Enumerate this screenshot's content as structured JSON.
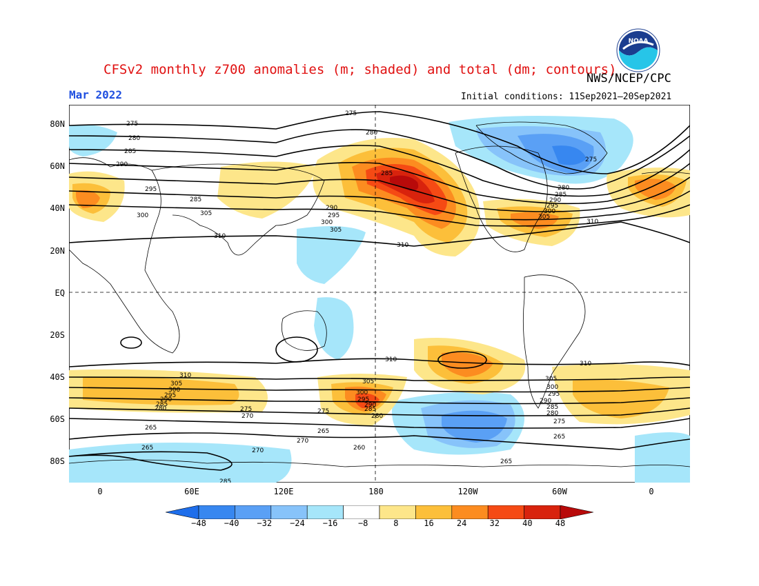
{
  "header": {
    "title": "CFSv2 monthly z700 anomalies (m; shaded) and total (dm; contours)",
    "agency": "NWS/NCEP/CPC",
    "month": "Mar 2022",
    "initial_conditions": "Initial conditions: 11Sep2021–20Sep2021",
    "logo_text": "NOAA"
  },
  "map": {
    "lat_labels": [
      "80N",
      "60N",
      "40N",
      "20N",
      "EQ",
      "20S",
      "40S",
      "60S",
      "80S"
    ],
    "lon_labels": [
      "0",
      "60E",
      "120E",
      "180",
      "120W",
      "60W",
      "0"
    ],
    "grid": "dashed at EQ and 180",
    "contour_labels": [
      "275",
      "280",
      "285",
      "290",
      "295",
      "300",
      "305",
      "310",
      "275",
      "280",
      "285",
      "290",
      "295",
      "300",
      "305",
      "310",
      "285",
      "275",
      "280",
      "285",
      "290",
      "295",
      "300",
      "305",
      "310",
      "310",
      "310",
      "305",
      "300",
      "295",
      "290",
      "285",
      "280",
      "275",
      "265",
      "265",
      "270",
      "265",
      "260",
      "265",
      "270",
      "305",
      "300",
      "295",
      "290",
      "285",
      "280",
      "275",
      "310",
      "305",
      "300",
      "295",
      "290",
      "285",
      "280",
      "275",
      "270",
      "265",
      "285"
    ]
  },
  "colorbar": {
    "labels": [
      "−48",
      "−40",
      "−32",
      "−24",
      "−16",
      "−8",
      "8",
      "16",
      "24",
      "32",
      "40",
      "48"
    ],
    "colors": [
      "#1e6eeb",
      "#3787f0",
      "#5aa0f5",
      "#87c3fa",
      "#a6e6fa",
      "#ffffff",
      "#fde68a",
      "#fcbf3a",
      "#fc8c20",
      "#f54a14",
      "#d8230d",
      "#b80a0a"
    ]
  }
}
